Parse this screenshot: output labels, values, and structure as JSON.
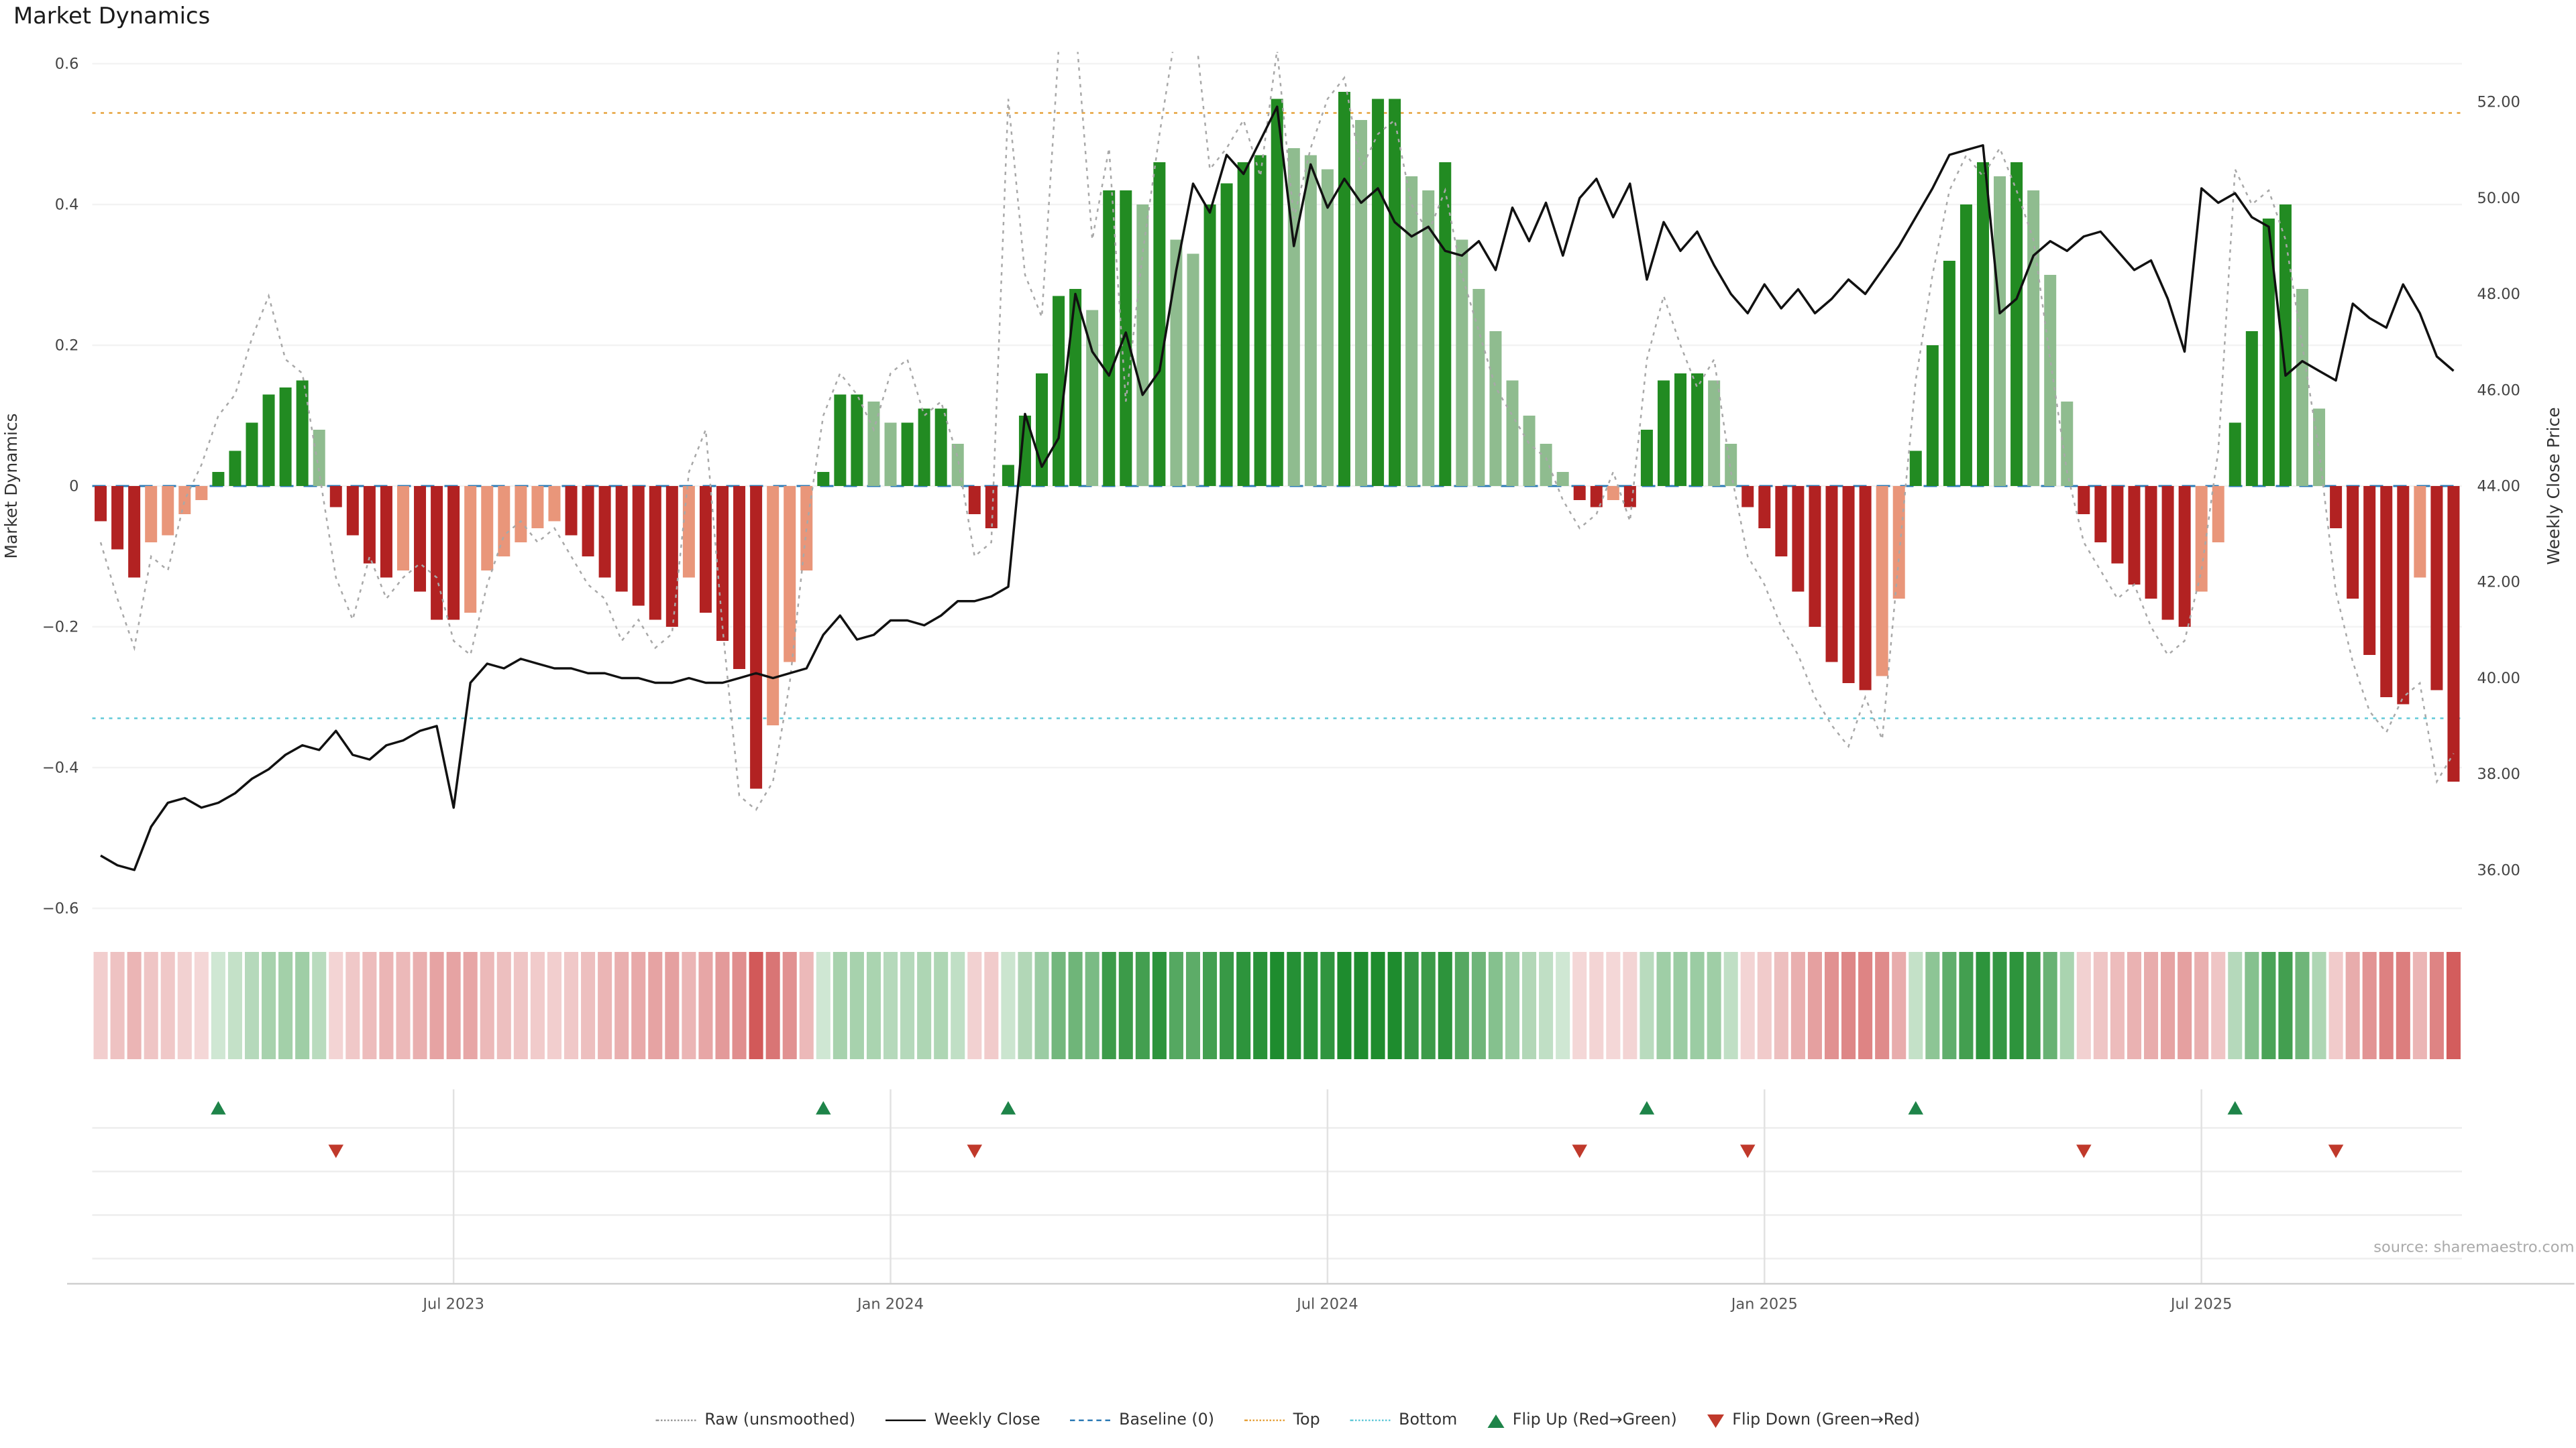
{
  "title": "Market Dynamics",
  "source": "source: sharemaestro.com",
  "colors": {
    "bar_pos_strong": "#228B22",
    "bar_pos_light": "#8FBC8F",
    "bar_neg_strong": "#B22222",
    "bar_neg_light": "#E9967A",
    "weekly_close": "#111111",
    "raw": "#a8a8a8",
    "baseline": "#2d7bb6",
    "top": "#e6a23c",
    "bottom": "#62c9d8",
    "flip_up": "#1e8449",
    "flip_down": "#c0392b",
    "heat_pos": "#1e8c2e",
    "heat_neg": "#cc4444"
  },
  "legend": {
    "items": [
      {
        "label": "Raw (unsmoothed)"
      },
      {
        "label": "Weekly Close"
      },
      {
        "label": "Baseline (0)"
      },
      {
        "label": "Top"
      },
      {
        "label": "Bottom"
      },
      {
        "label": "Flip Up (Red→Green)"
      },
      {
        "label": "Flip Down (Green→Red)"
      }
    ]
  },
  "chart_data": {
    "type": "bar+line",
    "title": "Market Dynamics",
    "x_unit": "weeks",
    "x_ticks": [
      {
        "label": "Jul 2023",
        "week": 21
      },
      {
        "label": "Jan 2024",
        "week": 47
      },
      {
        "label": "Jul 2024",
        "week": 73
      },
      {
        "label": "Jan 2025",
        "week": 99
      },
      {
        "label": "Jul 2025",
        "week": 125
      }
    ],
    "left_axis": {
      "label": "Market Dynamics",
      "ticks": [
        "0.6",
        "0.4",
        "0.2",
        "0",
        "−0.2",
        "−0.4",
        "−0.6"
      ],
      "tick_values": [
        0.6,
        0.4,
        0.2,
        0,
        -0.2,
        -0.4,
        -0.6
      ],
      "range": [
        -0.615,
        0.615
      ]
    },
    "right_axis": {
      "label": "Weekly Close Price",
      "ticks": [
        "52.00",
        "50.00",
        "48.00",
        "46.00",
        "44.00",
        "42.00",
        "40.00",
        "38.00",
        "36.00"
      ],
      "tick_values": [
        52,
        50,
        48,
        46,
        44,
        42,
        40,
        38,
        36
      ]
    },
    "reference_lines": {
      "baseline": 0,
      "top": 0.53,
      "bottom": -0.33
    },
    "heatmap_source": "bars",
    "flip_up_weeks": [
      7,
      43,
      54,
      92,
      108,
      127
    ],
    "flip_down_weeks": [
      14,
      52,
      88,
      98,
      118,
      133
    ],
    "series": [
      {
        "name": "Market Dynamics (bars)",
        "type": "bar",
        "axis": "left",
        "values": [
          -0.05,
          -0.09,
          -0.13,
          -0.08,
          -0.07,
          -0.04,
          -0.02,
          0.02,
          0.05,
          0.09,
          0.13,
          0.14,
          0.15,
          0.08,
          -0.03,
          -0.07,
          -0.11,
          -0.13,
          -0.12,
          -0.15,
          -0.19,
          -0.19,
          -0.18,
          -0.12,
          -0.1,
          -0.08,
          -0.06,
          -0.05,
          -0.07,
          -0.1,
          -0.13,
          -0.15,
          -0.17,
          -0.19,
          -0.2,
          -0.13,
          -0.18,
          -0.22,
          -0.26,
          -0.43,
          -0.34,
          -0.25,
          -0.12,
          0.02,
          0.13,
          0.13,
          0.12,
          0.09,
          0.09,
          0.11,
          0.11,
          0.06,
          -0.04,
          -0.06,
          0.03,
          0.1,
          0.16,
          0.27,
          0.28,
          0.25,
          0.42,
          0.42,
          0.4,
          0.46,
          0.35,
          0.33,
          0.4,
          0.43,
          0.46,
          0.47,
          0.55,
          0.48,
          0.47,
          0.45,
          0.56,
          0.52,
          0.55,
          0.55,
          0.44,
          0.42,
          0.46,
          0.35,
          0.28,
          0.22,
          0.15,
          0.1,
          0.06,
          0.02,
          -0.02,
          -0.03,
          -0.02,
          -0.03,
          0.08,
          0.15,
          0.16,
          0.16,
          0.15,
          0.06,
          -0.03,
          -0.06,
          -0.1,
          -0.15,
          -0.2,
          -0.25,
          -0.28,
          -0.29,
          -0.27,
          -0.16,
          0.05,
          0.2,
          0.32,
          0.4,
          0.46,
          0.44,
          0.46,
          0.42,
          0.3,
          0.12,
          -0.04,
          -0.08,
          -0.11,
          -0.14,
          -0.16,
          -0.19,
          -0.2,
          -0.15,
          -0.08,
          0.09,
          0.22,
          0.38,
          0.4,
          0.28,
          0.11,
          -0.06,
          -0.16,
          -0.24,
          -0.3,
          -0.31,
          -0.13,
          -0.29,
          -0.42
        ]
      },
      {
        "name": "Raw (unsmoothed)",
        "type": "line",
        "axis": "left",
        "values": [
          -0.08,
          -0.16,
          -0.23,
          -0.1,
          -0.12,
          -0.02,
          0.03,
          0.1,
          0.13,
          0.21,
          0.27,
          0.18,
          0.16,
          0.02,
          -0.13,
          -0.19,
          -0.1,
          -0.16,
          -0.13,
          -0.11,
          -0.13,
          -0.22,
          -0.24,
          -0.14,
          -0.07,
          -0.05,
          -0.08,
          -0.06,
          -0.1,
          -0.14,
          -0.16,
          -0.22,
          -0.19,
          -0.23,
          -0.21,
          0.02,
          0.08,
          -0.2,
          -0.44,
          -0.46,
          -0.42,
          -0.28,
          -0.06,
          0.1,
          0.16,
          0.13,
          0.08,
          0.16,
          0.18,
          0.1,
          0.12,
          0.04,
          -0.1,
          -0.08,
          0.55,
          0.3,
          0.24,
          0.62,
          0.66,
          0.35,
          0.48,
          0.12,
          0.33,
          0.5,
          0.65,
          0.68,
          0.45,
          0.48,
          0.52,
          0.44,
          0.62,
          0.38,
          0.48,
          0.55,
          0.58,
          0.45,
          0.5,
          0.52,
          0.4,
          0.36,
          0.42,
          0.3,
          0.22,
          0.14,
          0.1,
          0.06,
          0.04,
          -0.02,
          -0.06,
          -0.04,
          0.02,
          -0.05,
          0.18,
          0.27,
          0.2,
          0.14,
          0.18,
          0.02,
          -0.1,
          -0.14,
          -0.2,
          -0.24,
          -0.3,
          -0.34,
          -0.37,
          -0.3,
          -0.36,
          -0.1,
          0.15,
          0.3,
          0.42,
          0.47,
          0.44,
          0.48,
          0.42,
          0.35,
          0.18,
          0.02,
          -0.08,
          -0.12,
          -0.16,
          -0.14,
          -0.2,
          -0.24,
          -0.22,
          -0.12,
          0.05,
          0.45,
          0.4,
          0.42,
          0.35,
          0.2,
          0.05,
          -0.15,
          -0.25,
          -0.32,
          -0.35,
          -0.3,
          -0.28,
          -0.42,
          -0.38
        ]
      },
      {
        "name": "Weekly Close",
        "type": "line",
        "axis": "right",
        "values": [
          36.3,
          36.1,
          36.0,
          36.9,
          37.4,
          37.5,
          37.3,
          37.4,
          37.6,
          37.9,
          38.1,
          38.4,
          38.6,
          38.5,
          38.9,
          38.4,
          38.3,
          38.6,
          38.7,
          38.9,
          39.0,
          37.3,
          39.9,
          40.3,
          40.2,
          40.4,
          40.3,
          40.2,
          40.2,
          40.1,
          40.1,
          40.0,
          40.0,
          39.9,
          39.9,
          40.0,
          39.9,
          39.9,
          40.0,
          40.1,
          40.0,
          40.1,
          40.2,
          40.9,
          41.3,
          40.8,
          40.9,
          41.2,
          41.2,
          41.1,
          41.3,
          41.6,
          41.6,
          41.7,
          41.9,
          45.5,
          44.4,
          45.0,
          48.0,
          46.8,
          46.3,
          47.2,
          45.9,
          46.4,
          48.5,
          50.3,
          49.7,
          50.9,
          50.5,
          51.2,
          51.9,
          49.0,
          50.7,
          49.8,
          50.4,
          49.9,
          50.2,
          49.5,
          49.2,
          49.4,
          48.9,
          48.8,
          49.1,
          48.5,
          49.8,
          49.1,
          49.9,
          48.8,
          50.0,
          50.4,
          49.6,
          50.3,
          48.3,
          49.5,
          48.9,
          49.3,
          48.6,
          48.0,
          47.6,
          48.2,
          47.7,
          48.1,
          47.6,
          47.9,
          48.3,
          48.0,
          48.5,
          49.0,
          49.6,
          50.2,
          50.9,
          51.0,
          51.1,
          47.6,
          47.9,
          48.8,
          49.1,
          48.9,
          49.2,
          49.3,
          48.9,
          48.5,
          48.7,
          47.9,
          46.8,
          50.2,
          49.9,
          50.1,
          49.6,
          49.4,
          46.3,
          46.6,
          46.4,
          46.2,
          47.8,
          47.5,
          47.3,
          48.2,
          47.6,
          46.7,
          46.4
        ]
      }
    ]
  }
}
